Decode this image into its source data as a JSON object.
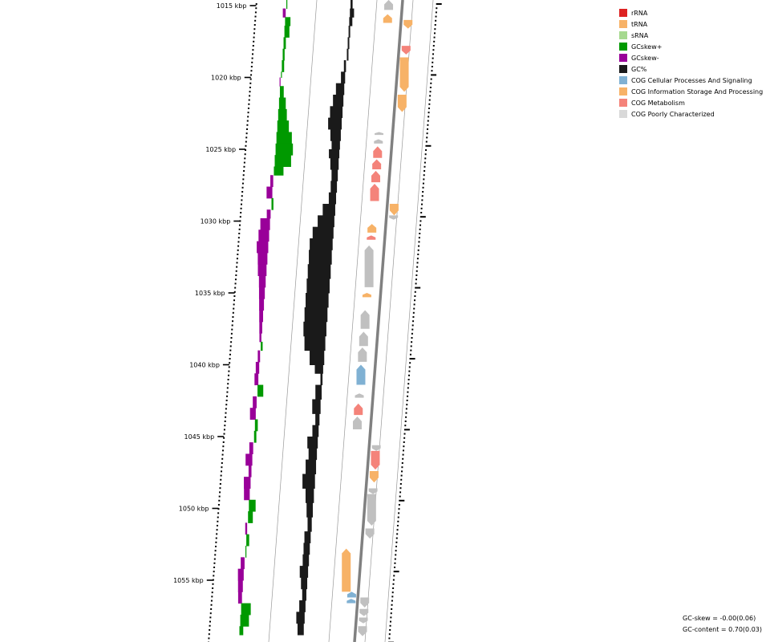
{
  "colors": {
    "background": "#ffffff",
    "gcskew_plus": "#009900",
    "gcskew_minus": "#990099",
    "gc_content": "#1a1a1a",
    "backbone": "#808080",
    "grid_line": "#999999"
  },
  "legend": [
    {
      "label": "rRNA",
      "color": "#dd2222"
    },
    {
      "label": "tRNA",
      "color": "#f7b267"
    },
    {
      "label": "sRNA",
      "color": "#a6d98f"
    },
    {
      "label": "GCskew+",
      "color": "#009900"
    },
    {
      "label": "GCskew-",
      "color": "#990099"
    },
    {
      "label": "GC%",
      "color": "#1a1a1a"
    },
    {
      "label": "COG Cellular Processes And Signaling",
      "color": "#80b1d3"
    },
    {
      "label": "COG Information Storage And Processing",
      "color": "#f7b267"
    },
    {
      "label": "COG Metabolism",
      "color": "#f4837a"
    },
    {
      "label": "COG Poorly Characterized",
      "color": "#d9d9d9"
    }
  ],
  "ticks": [
    {
      "kbp": 1015,
      "label": "1015 kbp"
    },
    {
      "kbp": 1020,
      "label": "1020 kbp"
    },
    {
      "kbp": 1025,
      "label": "1025 kbp"
    },
    {
      "kbp": 1030,
      "label": "1030 kbp"
    },
    {
      "kbp": 1035,
      "label": "1035 kbp"
    },
    {
      "kbp": 1040,
      "label": "1040 kbp"
    },
    {
      "kbp": 1045,
      "label": "1045 kbp"
    },
    {
      "kbp": 1050,
      "label": "1050 kbp"
    },
    {
      "kbp": 1055,
      "label": "1055 kbp"
    }
  ],
  "gc_skew": [
    [
      1014.6,
      0.05
    ],
    [
      1015.2,
      -0.15
    ],
    [
      1015.8,
      0.28
    ],
    [
      1016.4,
      0.26
    ],
    [
      1017.2,
      0.12
    ],
    [
      1018.0,
      0.1
    ],
    [
      1018.8,
      0.12
    ],
    [
      1019.6,
      0.05
    ],
    [
      1020.0,
      -0.05
    ],
    [
      1020.6,
      0.2
    ],
    [
      1021.4,
      0.35
    ],
    [
      1022.2,
      0.45
    ],
    [
      1023.0,
      0.6
    ],
    [
      1023.8,
      0.8
    ],
    [
      1024.6,
      0.9
    ],
    [
      1025.4,
      0.85
    ],
    [
      1026.2,
      0.5
    ],
    [
      1026.8,
      -0.15
    ],
    [
      1027.6,
      -0.3
    ],
    [
      1028.4,
      0.1
    ],
    [
      1029.2,
      -0.2
    ],
    [
      1029.8,
      -0.5
    ],
    [
      1030.6,
      -0.55
    ],
    [
      1031.4,
      -0.6
    ],
    [
      1032.2,
      -0.5
    ],
    [
      1033.0,
      -0.45
    ],
    [
      1033.8,
      -0.35
    ],
    [
      1034.6,
      -0.3
    ],
    [
      1035.4,
      -0.25
    ],
    [
      1036.2,
      -0.2
    ],
    [
      1037.0,
      -0.15
    ],
    [
      1037.8,
      -0.1
    ],
    [
      1038.4,
      0.1
    ],
    [
      1039.0,
      -0.12
    ],
    [
      1039.8,
      -0.18
    ],
    [
      1040.6,
      -0.2
    ],
    [
      1041.4,
      0.3
    ],
    [
      1042.2,
      -0.2
    ],
    [
      1043.0,
      -0.3
    ],
    [
      1043.8,
      0.15
    ],
    [
      1044.6,
      0.12
    ],
    [
      1045.4,
      -0.2
    ],
    [
      1046.2,
      -0.35
    ],
    [
      1047.0,
      -0.15
    ],
    [
      1047.8,
      -0.35
    ],
    [
      1048.6,
      -0.3
    ],
    [
      1049.4,
      0.35
    ],
    [
      1050.2,
      0.25
    ],
    [
      1051.0,
      -0.1
    ],
    [
      1051.8,
      0.15
    ],
    [
      1052.6,
      0.05
    ],
    [
      1053.4,
      -0.2
    ],
    [
      1054.2,
      -0.3
    ],
    [
      1055.0,
      -0.25
    ],
    [
      1055.8,
      -0.2
    ],
    [
      1056.6,
      0.5
    ],
    [
      1057.4,
      0.45
    ],
    [
      1058.2,
      0.2
    ],
    [
      1058.8,
      -0.15
    ]
  ],
  "gc_content": [
    [
      1014.6,
      0.02
    ],
    [
      1015.2,
      0.04
    ],
    [
      1015.8,
      0.03
    ],
    [
      1016.4,
      0.01
    ],
    [
      1017.2,
      0.01
    ],
    [
      1018.0,
      0.0
    ],
    [
      1018.8,
      -0.02
    ],
    [
      1019.6,
      -0.04
    ],
    [
      1020.4,
      -0.08
    ],
    [
      1021.2,
      -0.1
    ],
    [
      1022.0,
      -0.12
    ],
    [
      1022.8,
      -0.13
    ],
    [
      1023.6,
      -0.1
    ],
    [
      1024.4,
      -0.08
    ],
    [
      1025.0,
      -0.1
    ],
    [
      1025.6,
      -0.08
    ],
    [
      1026.4,
      -0.06
    ],
    [
      1027.2,
      -0.06
    ],
    [
      1028.0,
      -0.07
    ],
    [
      1028.8,
      -0.12
    ],
    [
      1029.6,
      -0.16
    ],
    [
      1030.4,
      -0.2
    ],
    [
      1031.2,
      -0.22
    ],
    [
      1032.0,
      -0.22
    ],
    [
      1033.0,
      -0.22
    ],
    [
      1034.0,
      -0.22
    ],
    [
      1035.0,
      -0.22
    ],
    [
      1036.0,
      -0.22
    ],
    [
      1037.0,
      -0.22
    ],
    [
      1038.0,
      -0.2
    ],
    [
      1039.0,
      -0.14
    ],
    [
      1040.0,
      -0.08
    ],
    [
      1040.6,
      -0.02
    ],
    [
      1041.4,
      -0.06
    ],
    [
      1042.4,
      -0.08
    ],
    [
      1043.4,
      -0.04
    ],
    [
      1044.2,
      -0.06
    ],
    [
      1045.0,
      -0.1
    ],
    [
      1045.8,
      -0.08
    ],
    [
      1046.6,
      -0.1
    ],
    [
      1047.6,
      -0.12
    ],
    [
      1048.6,
      -0.08
    ],
    [
      1049.6,
      -0.06
    ],
    [
      1050.6,
      -0.04
    ],
    [
      1051.6,
      -0.06
    ],
    [
      1052.4,
      -0.06
    ],
    [
      1053.2,
      -0.06
    ],
    [
      1054.0,
      -0.08
    ],
    [
      1054.8,
      -0.06
    ],
    [
      1055.6,
      -0.04
    ],
    [
      1056.4,
      -0.06
    ],
    [
      1057.2,
      -0.08
    ],
    [
      1058.0,
      -0.06
    ],
    [
      1058.8,
      -0.05
    ]
  ],
  "genes": [
    {
      "start": 1014.6,
      "end": 1015.3,
      "strand": "fwd",
      "category": "cog_poorly"
    },
    {
      "start": 1015.6,
      "end": 1016.2,
      "strand": "fwd",
      "category": "trna"
    },
    {
      "start": 1016.0,
      "end": 1016.6,
      "strand": "rev",
      "category": "trna"
    },
    {
      "start": 1017.8,
      "end": 1018.4,
      "strand": "rev",
      "category": "cog_metabolism"
    },
    {
      "start": 1018.6,
      "end": 1021.0,
      "strand": "rev",
      "category": "cog_info"
    },
    {
      "start": 1021.2,
      "end": 1022.4,
      "strand": "rev",
      "category": "cog_info"
    },
    {
      "start": 1023.8,
      "end": 1024.0,
      "strand": "fwd",
      "category": "cog_poorly"
    },
    {
      "start": 1024.3,
      "end": 1024.6,
      "strand": "fwd",
      "category": "cog_poorly"
    },
    {
      "start": 1024.8,
      "end": 1025.6,
      "strand": "fwd",
      "category": "cog_metabolism"
    },
    {
      "start": 1025.7,
      "end": 1026.4,
      "strand": "fwd",
      "category": "cog_metabolism"
    },
    {
      "start": 1026.5,
      "end": 1027.3,
      "strand": "fwd",
      "category": "cog_metabolism"
    },
    {
      "start": 1027.4,
      "end": 1028.6,
      "strand": "fwd",
      "category": "cog_metabolism"
    },
    {
      "start": 1028.8,
      "end": 1029.6,
      "strand": "rev",
      "category": "cog_info"
    },
    {
      "start": 1029.6,
      "end": 1029.9,
      "strand": "rev",
      "category": "cog_poorly"
    },
    {
      "start": 1030.2,
      "end": 1030.8,
      "strand": "fwd",
      "category": "cog_info"
    },
    {
      "start": 1031.0,
      "end": 1031.3,
      "strand": "fwd",
      "category": "cog_metabolism"
    },
    {
      "start": 1031.7,
      "end": 1034.6,
      "strand": "fwd",
      "category": "cog_poorly"
    },
    {
      "start": 1035.0,
      "end": 1035.3,
      "strand": "fwd",
      "category": "cog_info"
    },
    {
      "start": 1036.2,
      "end": 1037.5,
      "strand": "fwd",
      "category": "cog_poorly"
    },
    {
      "start": 1037.7,
      "end": 1038.7,
      "strand": "fwd",
      "category": "cog_poorly"
    },
    {
      "start": 1038.8,
      "end": 1039.8,
      "strand": "fwd",
      "category": "cog_poorly"
    },
    {
      "start": 1040.0,
      "end": 1041.4,
      "strand": "fwd",
      "category": "cog_cellular"
    },
    {
      "start": 1042.0,
      "end": 1042.3,
      "strand": "fwd",
      "category": "cog_poorly"
    },
    {
      "start": 1042.7,
      "end": 1043.5,
      "strand": "fwd",
      "category": "cog_metabolism"
    },
    {
      "start": 1043.6,
      "end": 1044.5,
      "strand": "fwd",
      "category": "cog_poorly"
    },
    {
      "start": 1045.6,
      "end": 1046.0,
      "strand": "rev",
      "category": "cog_poorly"
    },
    {
      "start": 1046.0,
      "end": 1047.3,
      "strand": "rev",
      "category": "cog_metabolism"
    },
    {
      "start": 1047.4,
      "end": 1048.2,
      "strand": "rev",
      "category": "cog_info"
    },
    {
      "start": 1048.6,
      "end": 1049.0,
      "strand": "rev",
      "category": "cog_poorly"
    },
    {
      "start": 1049.0,
      "end": 1051.2,
      "strand": "rev",
      "category": "cog_poorly"
    },
    {
      "start": 1051.4,
      "end": 1052.1,
      "strand": "rev",
      "category": "cog_poorly"
    },
    {
      "start": 1052.8,
      "end": 1055.8,
      "strand": "fwd",
      "category": "cog_info"
    },
    {
      "start": 1056.2,
      "end": 1056.9,
      "strand": "rev",
      "category": "cog_poorly"
    },
    {
      "start": 1057.0,
      "end": 1057.5,
      "strand": "rev",
      "category": "cog_poorly"
    },
    {
      "start": 1057.6,
      "end": 1058.0,
      "strand": "rev",
      "category": "cog_poorly"
    },
    {
      "start": 1058.2,
      "end": 1058.9,
      "strand": "rev",
      "category": "cog_poorly"
    }
  ],
  "genes_inner": [
    {
      "start": 1055.8,
      "end": 1056.2,
      "strand": "fwd",
      "category": "cog_cellular"
    },
    {
      "start": 1056.3,
      "end": 1056.6,
      "strand": "fwd",
      "category": "cog_cellular"
    }
  ],
  "footer": {
    "gc_skew": "GC-skew = -0.00(0.06)",
    "gc_content": "GC-content = 0.70(0.03)"
  }
}
